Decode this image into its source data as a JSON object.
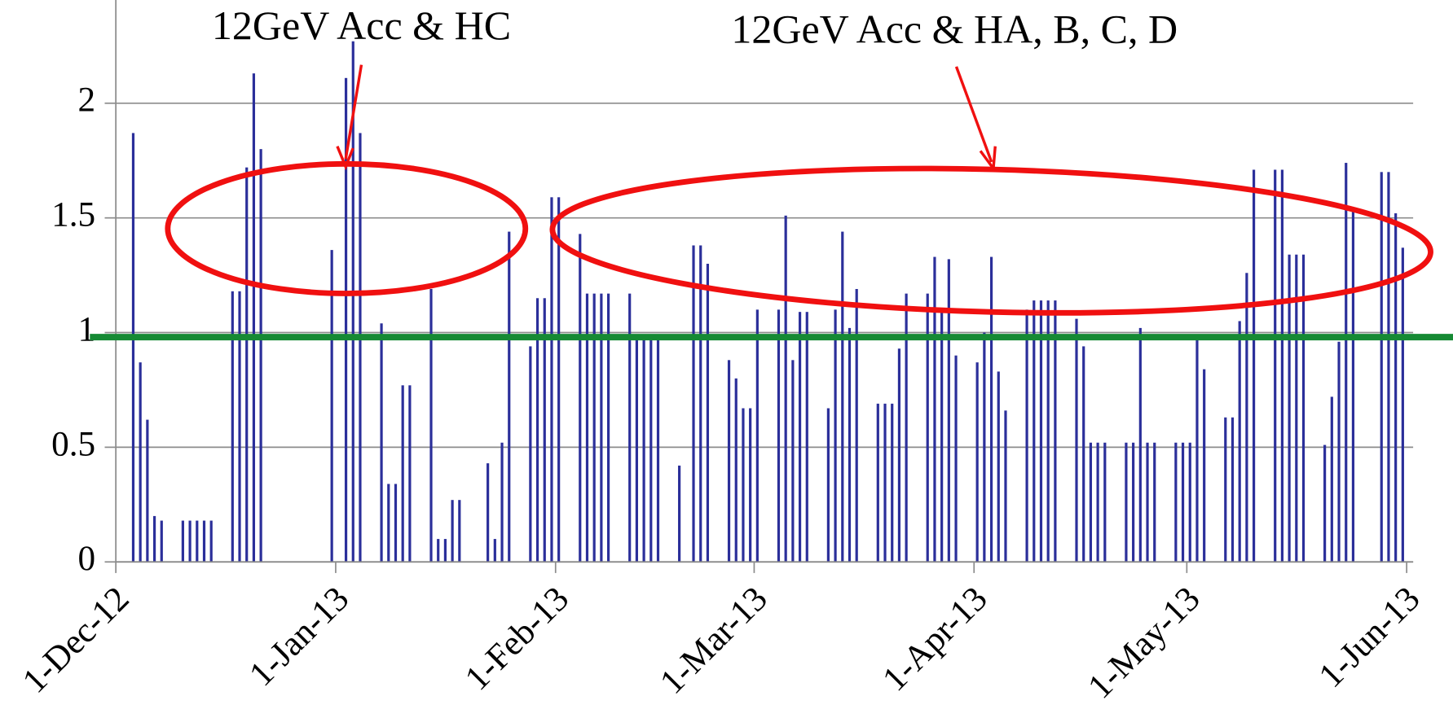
{
  "chart_data": {
    "type": "bar",
    "annotations": [
      "12GeV Acc & HC",
      "12GeV Acc & HA, B, C, D"
    ],
    "color": "#2b2f9a",
    "reference_line": {
      "value": 0.98,
      "color": "#168a34"
    },
    "grid": true,
    "xlim": [
      "2012-12-01",
      "2013-06-01"
    ],
    "xticks": [
      {
        "value": "2012-12-01",
        "label": "1-Dec-12"
      },
      {
        "value": "2013-01-01",
        "label": "1-Jan-13"
      },
      {
        "value": "2013-02-01",
        "label": "1-Feb-13"
      },
      {
        "value": "2013-03-01",
        "label": "1-Mar-13"
      },
      {
        "value": "2013-04-01",
        "label": "1-Apr-13"
      },
      {
        "value": "2013-05-01",
        "label": "1-May-13"
      },
      {
        "value": "2013-06-01",
        "label": "1-Jun-13"
      }
    ],
    "ylim": [
      0,
      2.45
    ],
    "yticks": [
      0,
      0.5,
      1,
      1.5,
      2
    ],
    "x": [
      "2012-12-03",
      "2012-12-04",
      "2012-12-05",
      "2012-12-06",
      "2012-12-07",
      "2012-12-10",
      "2012-12-11",
      "2012-12-12",
      "2012-12-13",
      "2012-12-14",
      "2012-12-17",
      "2012-12-18",
      "2012-12-19",
      "2012-12-20",
      "2012-12-21",
      "2012-12-31",
      "2013-01-02",
      "2013-01-03",
      "2013-01-04",
      "2013-01-07",
      "2013-01-08",
      "2013-01-09",
      "2013-01-10",
      "2013-01-11",
      "2013-01-14",
      "2013-01-15",
      "2013-01-16",
      "2013-01-17",
      "2013-01-18",
      "2013-01-22",
      "2013-01-23",
      "2013-01-24",
      "2013-01-25",
      "2013-01-28",
      "2013-01-29",
      "2013-01-30",
      "2013-01-31",
      "2013-02-01",
      "2013-02-04",
      "2013-02-05",
      "2013-02-06",
      "2013-02-07",
      "2013-02-08",
      "2013-02-11",
      "2013-02-12",
      "2013-02-13",
      "2013-02-14",
      "2013-02-15",
      "2013-02-18",
      "2013-02-20",
      "2013-02-21",
      "2013-02-22",
      "2013-02-25",
      "2013-02-26",
      "2013-02-27",
      "2013-02-28",
      "2013-03-01",
      "2013-03-04",
      "2013-03-05",
      "2013-03-06",
      "2013-03-07",
      "2013-03-08",
      "2013-03-11",
      "2013-03-12",
      "2013-03-13",
      "2013-03-14",
      "2013-03-15",
      "2013-03-18",
      "2013-03-19",
      "2013-03-20",
      "2013-03-21",
      "2013-03-22",
      "2013-03-25",
      "2013-03-26",
      "2013-03-27",
      "2013-03-28",
      "2013-03-29",
      "2013-04-01",
      "2013-04-02",
      "2013-04-03",
      "2013-04-04",
      "2013-04-05",
      "2013-04-08",
      "2013-04-09",
      "2013-04-10",
      "2013-04-11",
      "2013-04-12",
      "2013-04-15",
      "2013-04-16",
      "2013-04-17",
      "2013-04-18",
      "2013-04-19",
      "2013-04-22",
      "2013-04-23",
      "2013-04-24",
      "2013-04-25",
      "2013-04-26",
      "2013-04-29",
      "2013-04-30",
      "2013-05-01",
      "2013-05-02",
      "2013-05-03",
      "2013-05-06",
      "2013-05-07",
      "2013-05-08",
      "2013-05-09",
      "2013-05-10",
      "2013-05-13",
      "2013-05-14",
      "2013-05-15",
      "2013-05-16",
      "2013-05-17",
      "2013-05-20",
      "2013-05-21",
      "2013-05-22",
      "2013-05-23",
      "2013-05-24",
      "2013-05-28",
      "2013-05-29",
      "2013-05-30",
      "2013-05-31"
    ],
    "values": [
      1.87,
      0.87,
      0.62,
      0.2,
      0.18,
      0.18,
      0.18,
      0.18,
      0.18,
      0.18,
      1.18,
      1.18,
      1.72,
      2.13,
      1.8,
      1.36,
      2.11,
      2.27,
      1.87,
      1.04,
      0.34,
      0.34,
      0.77,
      0.77,
      1.19,
      0.1,
      0.1,
      0.27,
      0.27,
      0.43,
      0.1,
      0.52,
      1.44,
      0.94,
      1.15,
      1.15,
      1.59,
      1.59,
      1.43,
      1.17,
      1.17,
      1.17,
      1.17,
      1.17,
      0.97,
      0.97,
      0.97,
      0.97,
      0.42,
      1.38,
      1.38,
      1.3,
      0.88,
      0.8,
      0.67,
      0.67,
      1.1,
      1.1,
      1.51,
      0.88,
      1.09,
      1.09,
      0.67,
      1.1,
      1.44,
      1.02,
      1.19,
      0.69,
      0.69,
      0.69,
      0.93,
      1.17,
      1.17,
      1.33,
      1.1,
      1.32,
      0.9,
      0.87,
      1.0,
      1.33,
      0.83,
      0.66,
      1.1,
      1.14,
      1.14,
      1.14,
      1.14,
      1.06,
      0.94,
      0.52,
      0.52,
      0.52,
      0.52,
      0.52,
      1.02,
      0.52,
      0.52,
      0.52,
      0.52,
      0.52,
      0.97,
      0.84,
      0.63,
      0.63,
      1.05,
      1.26,
      1.71,
      1.71,
      1.71,
      1.34,
      1.34,
      1.34,
      0.51,
      0.72,
      0.96,
      1.74,
      1.53,
      1.7,
      1.7,
      1.52,
      1.37
    ]
  }
}
